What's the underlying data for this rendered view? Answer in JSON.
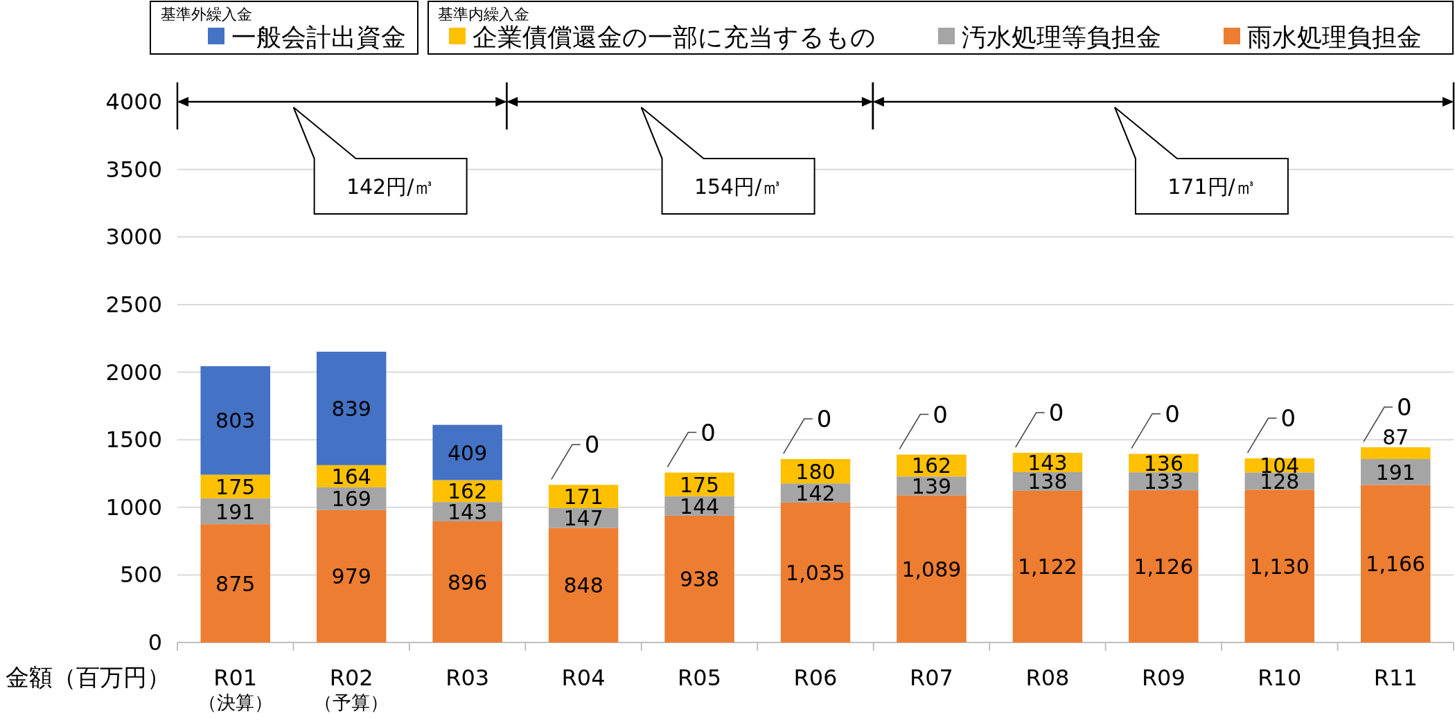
{
  "chart_data": {
    "type": "bar",
    "stacked": true,
    "categories": [
      "R01\n（決算）",
      "R02\n（予算）",
      "R03",
      "R04",
      "R05",
      "R06",
      "R07",
      "R08",
      "R09",
      "R10",
      "R11"
    ],
    "series": [
      {
        "name": "雨水処理負担金",
        "color": "#ed7d31",
        "values": [
          875,
          979,
          896,
          848,
          938,
          1035,
          1089,
          1122,
          1126,
          1130,
          1166
        ],
        "value_labels": [
          "875",
          "979",
          "896",
          "848",
          "938",
          "1,035",
          "1,089",
          "1,122",
          "1,126",
          "1,130",
          "1,166"
        ]
      },
      {
        "name": "汚水処理等負担金",
        "color": "#a5a5a5",
        "values": [
          191,
          169,
          143,
          147,
          144,
          142,
          139,
          138,
          133,
          128,
          191
        ],
        "value_labels": [
          "191",
          "169",
          "143",
          "147",
          "144",
          "142",
          "139",
          "138",
          "133",
          "128",
          "191"
        ]
      },
      {
        "name": "企業債償還金の一部に充当するもの",
        "color": "#ffc000",
        "values": [
          175,
          164,
          162,
          171,
          175,
          180,
          162,
          143,
          136,
          104,
          87
        ],
        "value_labels": [
          "175",
          "164",
          "162",
          "171",
          "175",
          "180",
          "162",
          "143",
          "136",
          "104",
          "87"
        ]
      },
      {
        "name": "一般会計出資金",
        "color": "#4472c4",
        "values": [
          803,
          839,
          409,
          0,
          0,
          0,
          0,
          0,
          0,
          0,
          0
        ],
        "value_labels": [
          "803",
          "839",
          "409",
          "0",
          "0",
          "0",
          "0",
          "0",
          "0",
          "0",
          "0"
        ]
      }
    ],
    "ylim": [
      0,
      4000
    ],
    "yticks": [
      0,
      500,
      1000,
      1500,
      2000,
      2500,
      3000,
      3500,
      4000
    ],
    "ylabel": "金額（百万円）",
    "grid": "y",
    "legend": "top",
    "annotations": [
      "基準外繰入金",
      "基準内繰入金",
      "142円/㎥",
      "154円/㎥",
      "171円/㎥"
    ]
  }
}
